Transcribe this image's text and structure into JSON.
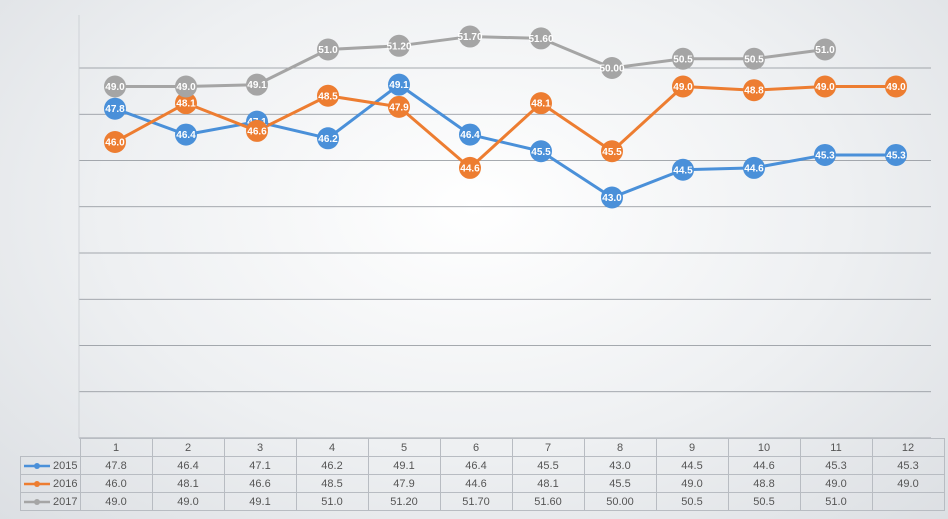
{
  "chart_data": {
    "type": "line",
    "categories": [
      "1",
      "2",
      "3",
      "4",
      "5",
      "6",
      "7",
      "8",
      "9",
      "10",
      "11",
      "12"
    ],
    "ylim": [
      30,
      52
    ],
    "grid": true,
    "legend": "data-table",
    "series": [
      {
        "name": "2015",
        "color": "#4a90d9",
        "values": [
          47.8,
          46.4,
          47.1,
          46.2,
          49.1,
          46.4,
          45.5,
          43.0,
          44.5,
          44.6,
          45.3,
          45.3
        ],
        "labels": [
          "47.8",
          "46.4",
          "47.1",
          "46.2",
          "49.1",
          "46.4",
          "45.5",
          "43.0",
          "44.5",
          "44.6",
          "45.3",
          "45.3"
        ],
        "table": [
          "47.8",
          "46.4",
          "47.1",
          "46.2",
          "49.1",
          "46.4",
          "45.5",
          "43.0",
          "44.5",
          "44.6",
          "45.3",
          "45.3"
        ]
      },
      {
        "name": "2016",
        "color": "#ed7d31",
        "values": [
          46.0,
          48.1,
          46.6,
          48.5,
          47.9,
          44.6,
          48.1,
          45.5,
          49.0,
          48.8,
          49.0,
          49.0
        ],
        "labels": [
          "46.0",
          "48.1",
          "46.6",
          "48.5",
          "47.9",
          "44.6",
          "48.1",
          "45.5",
          "49.0",
          "48.8",
          "49.0",
          "49.0"
        ],
        "table": [
          "46.0",
          "48.1",
          "46.6",
          "48.5",
          "47.9",
          "44.6",
          "48.1",
          "45.5",
          "49.0",
          "48.8",
          "49.0",
          "49.0"
        ]
      },
      {
        "name": "2017",
        "color": "#a5a5a5",
        "values": [
          49.0,
          49.0,
          49.1,
          51.0,
          51.2,
          51.7,
          51.6,
          50.0,
          50.5,
          50.5,
          51.0,
          null
        ],
        "labels": [
          "49.0",
          "49.0",
          "49.1",
          "51.0",
          "51.20",
          "51.70",
          "51.60",
          "50.00",
          "50.5",
          "50.5",
          "51.0",
          ""
        ],
        "table": [
          "49.0",
          "49.0",
          "49.1",
          "51.0",
          "51.20",
          "51.70",
          "51.60",
          "50.00",
          "50.5",
          "50.5",
          "51.0",
          ""
        ]
      }
    ]
  }
}
